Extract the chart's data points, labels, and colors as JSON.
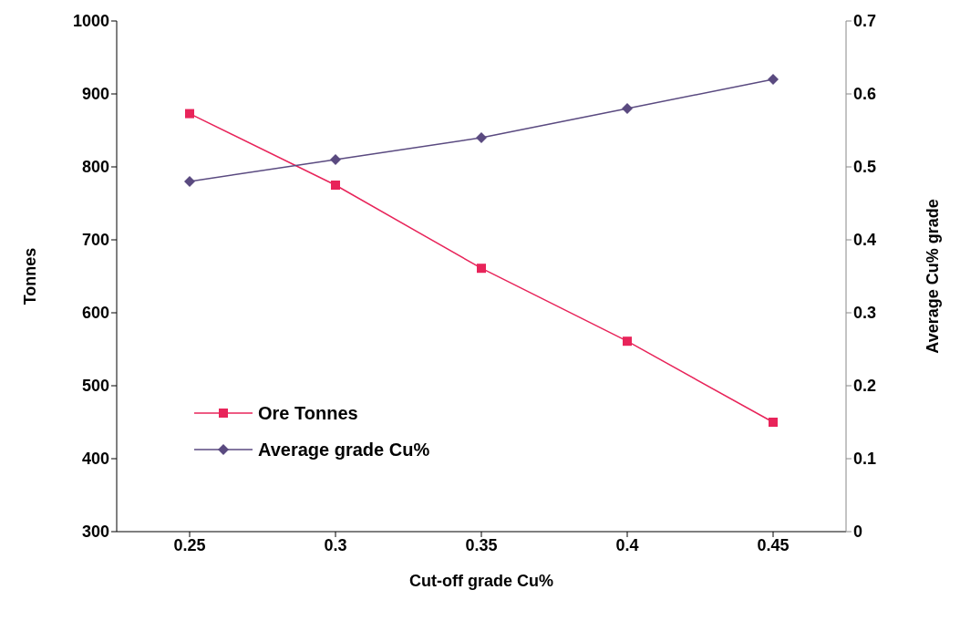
{
  "chart_data": {
    "type": "line",
    "xlabel": "Cut-off grade Cu%",
    "ylabel": "Tonnes",
    "y2label": "Average Cu% grade",
    "categories": [
      "0.25",
      "0.3",
      "0.35",
      "0.4",
      "0.45"
    ],
    "series": [
      {
        "name": "Ore Tonnes",
        "color": "#e8245a",
        "marker": "square",
        "values": [
          873,
          775,
          661,
          561,
          450
        ]
      },
      {
        "name": "Average grade Cu%",
        "color": "#5a4a80",
        "marker": "diamond",
        "axis": "y2",
        "values": [
          0.48,
          0.51,
          0.54,
          0.58,
          0.62
        ]
      }
    ],
    "ylim": [
      300,
      1000
    ],
    "yticks": [
      300,
      400,
      500,
      600,
      700,
      800,
      900,
      1000
    ],
    "y2lim": [
      0,
      0.7
    ],
    "y2ticks": [
      0,
      0.1,
      0.2,
      0.3,
      0.4,
      0.5,
      0.6,
      0.7
    ],
    "grid": false,
    "legend": "bottom left",
    "line_style": "solid"
  }
}
